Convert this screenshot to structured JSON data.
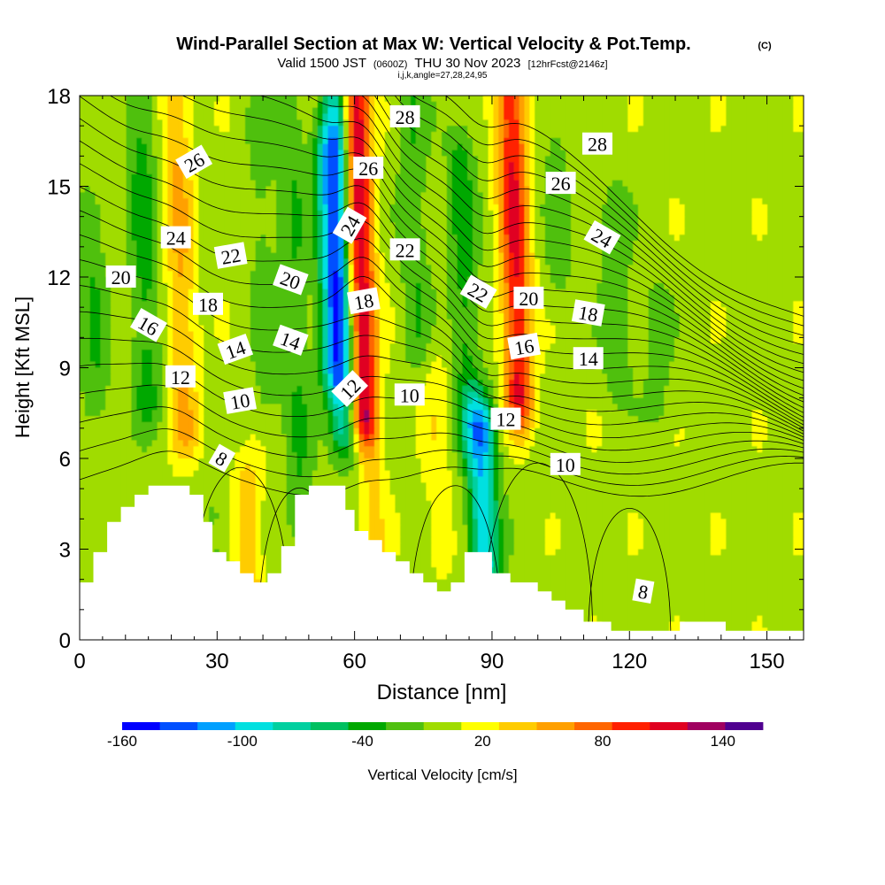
{
  "chart_data": {
    "type": "heatmap",
    "title": "Wind-Parallel Section at Max W: Vertical Velocity & Pot.Temp.",
    "title_mark": "(C)",
    "subtitle_parts": [
      "Valid 1500 JST",
      "(0600Z)",
      "THU 30 Nov 2023",
      "[12hrFcst@2146z]"
    ],
    "subtitle2": "i,j,k,angle=27,28,24,95",
    "xlabel": "Distance [nm]",
    "ylabel": "Height [Kft MSL]",
    "xlim": [
      0,
      158
    ],
    "ylim": [
      0,
      18
    ],
    "xticks": [
      0,
      30,
      60,
      90,
      120,
      150
    ],
    "yticks": [
      0,
      3,
      6,
      9,
      12,
      15,
      18
    ],
    "colorbar": {
      "label": "Vertical Velocity [cm/s]",
      "min": -160,
      "max": 160,
      "step": 20,
      "tick_labels": [
        "-160",
        "-100",
        "-40",
        "20",
        "80",
        "140"
      ],
      "tick_values": [
        -160,
        -100,
        -40,
        20,
        80,
        140
      ],
      "colors": [
        "#0000ff",
        "#0050ff",
        "#00a0ff",
        "#00e0e0",
        "#00d0a0",
        "#00c060",
        "#00a800",
        "#50c010",
        "#a0dc00",
        "#ffff00",
        "#ffcc00",
        "#ffa000",
        "#ff6600",
        "#ff2000",
        "#e00020",
        "#a00060",
        "#500090"
      ]
    },
    "velocity_features": [
      {
        "x": 61,
        "h0": 7.5,
        "h1": 18,
        "w": 140
      },
      {
        "x": 95,
        "h0": 8,
        "h1": 18,
        "w": 110
      },
      {
        "x": 22,
        "h0": 7,
        "h1": 18,
        "w": 50
      },
      {
        "x": 37,
        "h0": 1,
        "h1": 5,
        "w": 40
      },
      {
        "x": 64,
        "h0": 2,
        "h1": 6,
        "w": 30
      },
      {
        "x": 78,
        "h0": 3,
        "h1": 9,
        "w": 20
      },
      {
        "x": 57,
        "h0": 7,
        "h1": 18,
        "w": -100
      },
      {
        "x": 55,
        "h0": 9,
        "h1": 16,
        "w": -80
      },
      {
        "x": 88,
        "h0": 2.5,
        "h1": 7,
        "w": -110
      },
      {
        "x": 84,
        "h0": 7,
        "h1": 16,
        "w": -40
      },
      {
        "x": 14,
        "h0": 8,
        "h1": 18,
        "w": -40
      },
      {
        "x": 3,
        "h0": 8,
        "h1": 14,
        "w": -30
      },
      {
        "x": 47,
        "h0": 4,
        "h1": 18,
        "w": -30
      },
      {
        "x": 40,
        "h0": 8,
        "h1": 17,
        "w": -20
      },
      {
        "x": 73,
        "h0": 10,
        "h1": 18,
        "w": -30
      },
      {
        "x": 117,
        "h0": 9,
        "h1": 14,
        "w": -30
      },
      {
        "x": 104,
        "h0": 12,
        "h1": 18,
        "w": -20
      },
      {
        "x": 126,
        "h0": 8,
        "h1": 11,
        "w": -20
      },
      {
        "x": 30,
        "h0": 2,
        "h1": 4,
        "w": -20
      }
    ],
    "theta_contour_labels": [
      {
        "text": "28",
        "x": 71,
        "y": 17.3,
        "angle": 0
      },
      {
        "text": "28",
        "x": 113,
        "y": 16.4,
        "angle": 0
      },
      {
        "text": "26",
        "x": 25,
        "y": 15.8,
        "angle": -30
      },
      {
        "text": "26",
        "x": 63,
        "y": 15.6,
        "angle": 0
      },
      {
        "text": "26",
        "x": 105,
        "y": 15.1,
        "angle": 0
      },
      {
        "text": "24",
        "x": 21,
        "y": 13.3,
        "angle": 0
      },
      {
        "text": "24",
        "x": 59,
        "y": 13.7,
        "angle": -60
      },
      {
        "text": "24",
        "x": 114,
        "y": 13.3,
        "angle": 30
      },
      {
        "text": "22",
        "x": 33,
        "y": 12.7,
        "angle": -10
      },
      {
        "text": "22",
        "x": 71,
        "y": 12.9,
        "angle": 0
      },
      {
        "text": "22",
        "x": 87,
        "y": 11.5,
        "angle": 30
      },
      {
        "text": "20",
        "x": 9,
        "y": 12,
        "angle": 0
      },
      {
        "text": "20",
        "x": 46,
        "y": 11.9,
        "angle": 20
      },
      {
        "text": "20",
        "x": 98,
        "y": 11.3,
        "angle": 0
      },
      {
        "text": "18",
        "x": 28,
        "y": 11.1,
        "angle": 0
      },
      {
        "text": "18",
        "x": 62,
        "y": 11.2,
        "angle": -10
      },
      {
        "text": "18",
        "x": 111,
        "y": 10.8,
        "angle": 10
      },
      {
        "text": "16",
        "x": 15,
        "y": 10.4,
        "angle": 30
      },
      {
        "text": "16",
        "x": 97,
        "y": 9.7,
        "angle": -10
      },
      {
        "text": "14",
        "x": 34,
        "y": 9.6,
        "angle": -20
      },
      {
        "text": "14",
        "x": 46,
        "y": 9.9,
        "angle": 20
      },
      {
        "text": "14",
        "x": 111,
        "y": 9.3,
        "angle": 0
      },
      {
        "text": "12",
        "x": 22,
        "y": 8.7,
        "angle": 0
      },
      {
        "text": "12",
        "x": 59,
        "y": 8.3,
        "angle": -45
      },
      {
        "text": "12",
        "x": 93,
        "y": 7.3,
        "angle": 0
      },
      {
        "text": "10",
        "x": 35,
        "y": 7.9,
        "angle": -10
      },
      {
        "text": "10",
        "x": 72,
        "y": 8.1,
        "angle": 0
      },
      {
        "text": "10",
        "x": 106,
        "y": 5.8,
        "angle": 0
      },
      {
        "text": "8",
        "x": 31,
        "y": 6.0,
        "angle": 30
      },
      {
        "text": "8",
        "x": 123,
        "y": 1.6,
        "angle": 10
      }
    ],
    "terrain": [
      [
        0,
        1.9
      ],
      [
        3,
        1.9
      ],
      [
        3,
        2.9
      ],
      [
        6,
        2.9
      ],
      [
        6,
        3.9
      ],
      [
        9,
        3.9
      ],
      [
        9,
        4.4
      ],
      [
        12,
        4.4
      ],
      [
        12,
        4.8
      ],
      [
        15,
        4.8
      ],
      [
        15,
        5.1
      ],
      [
        24,
        5.1
      ],
      [
        24,
        4.8
      ],
      [
        27,
        4.8
      ],
      [
        27,
        3.9
      ],
      [
        29,
        3.9
      ],
      [
        29,
        2.9
      ],
      [
        32,
        2.9
      ],
      [
        32,
        2.6
      ],
      [
        35,
        2.6
      ],
      [
        35,
        2.2
      ],
      [
        38,
        2.2
      ],
      [
        38,
        1.9
      ],
      [
        41,
        1.9
      ],
      [
        41,
        2.2
      ],
      [
        44,
        2.2
      ],
      [
        44,
        3.1
      ],
      [
        47,
        3.1
      ],
      [
        47,
        4.8
      ],
      [
        50,
        4.8
      ],
      [
        50,
        5.1
      ],
      [
        58,
        5.1
      ],
      [
        58,
        4.3
      ],
      [
        60,
        4.3
      ],
      [
        60,
        3.6
      ],
      [
        63,
        3.6
      ],
      [
        63,
        3.3
      ],
      [
        66,
        3.3
      ],
      [
        66,
        2.9
      ],
      [
        69,
        2.9
      ],
      [
        69,
        2.6
      ],
      [
        72,
        2.6
      ],
      [
        72,
        2.2
      ],
      [
        75,
        2.2
      ],
      [
        75,
        1.9
      ],
      [
        78,
        1.9
      ],
      [
        78,
        1.6
      ],
      [
        81,
        1.6
      ],
      [
        81,
        1.9
      ],
      [
        84,
        1.9
      ],
      [
        84,
        2.9
      ],
      [
        90,
        2.9
      ],
      [
        90,
        2.2
      ],
      [
        94,
        2.2
      ],
      [
        94,
        1.9
      ],
      [
        100,
        1.9
      ],
      [
        100,
        1.6
      ],
      [
        103,
        1.6
      ],
      [
        103,
        1.3
      ],
      [
        106,
        1.3
      ],
      [
        106,
        1.0
      ],
      [
        110,
        1.0
      ],
      [
        110,
        0.6
      ],
      [
        116,
        0.6
      ],
      [
        116,
        0.3
      ],
      [
        131,
        0.3
      ],
      [
        131,
        0.6
      ],
      [
        141,
        0.6
      ],
      [
        141,
        0.3
      ],
      [
        158,
        0.3
      ],
      [
        158,
        0
      ],
      [
        0,
        0
      ]
    ]
  }
}
